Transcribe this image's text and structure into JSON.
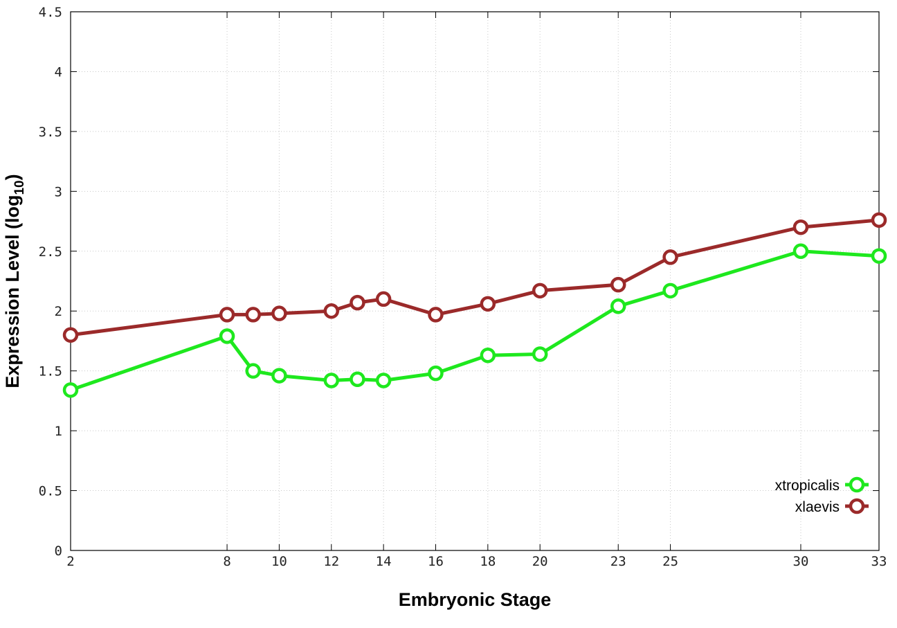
{
  "chart_data": {
    "type": "line",
    "xlabel": "Embryonic Stage",
    "ylabel": "Expression Level (log",
    "ylabel_subscript": "10",
    "ylabel_suffix": ")",
    "ylim": [
      0,
      4.5
    ],
    "xlim": [
      2,
      33
    ],
    "y_ticks": [
      {
        "value": 0,
        "label": "0"
      },
      {
        "value": 0.5,
        "label": "0.5"
      },
      {
        "value": 1,
        "label": "1"
      },
      {
        "value": 1.5,
        "label": "1.5"
      },
      {
        "value": 2,
        "label": "2"
      },
      {
        "value": 2.5,
        "label": "2.5"
      },
      {
        "value": 3,
        "label": "3"
      },
      {
        "value": 3.5,
        "label": "3.5"
      },
      {
        "value": 4,
        "label": "4"
      },
      {
        "value": 4.5,
        "label": "4.5"
      }
    ],
    "x_ticks": [
      {
        "value": 2,
        "label": "2"
      },
      {
        "value": 8,
        "label": "8"
      },
      {
        "value": 10,
        "label": "10"
      },
      {
        "value": 12,
        "label": "12"
      },
      {
        "value": 14,
        "label": "14"
      },
      {
        "value": 16,
        "label": "16"
      },
      {
        "value": 18,
        "label": "18"
      },
      {
        "value": 20,
        "label": "20"
      },
      {
        "value": 23,
        "label": "23"
      },
      {
        "value": 25,
        "label": "25"
      },
      {
        "value": 30,
        "label": "30"
      },
      {
        "value": 33,
        "label": "33"
      }
    ],
    "grid": true,
    "legend_position": "bottom-right",
    "x": [
      2,
      8,
      9,
      10,
      12,
      13,
      14,
      16,
      18,
      20,
      23,
      25,
      30,
      33
    ],
    "series": [
      {
        "name": "xtropicalis",
        "color": "#1ee81e",
        "values": [
          1.34,
          1.79,
          1.5,
          1.46,
          1.42,
          1.43,
          1.42,
          1.48,
          1.63,
          1.64,
          2.04,
          2.17,
          2.5,
          2.46
        ]
      },
      {
        "name": "xlaevis",
        "color": "#9b2a2a",
        "values": [
          1.8,
          1.97,
          1.97,
          1.98,
          2.0,
          2.07,
          2.1,
          1.97,
          2.06,
          2.17,
          2.22,
          2.45,
          2.7,
          2.76
        ]
      }
    ]
  }
}
